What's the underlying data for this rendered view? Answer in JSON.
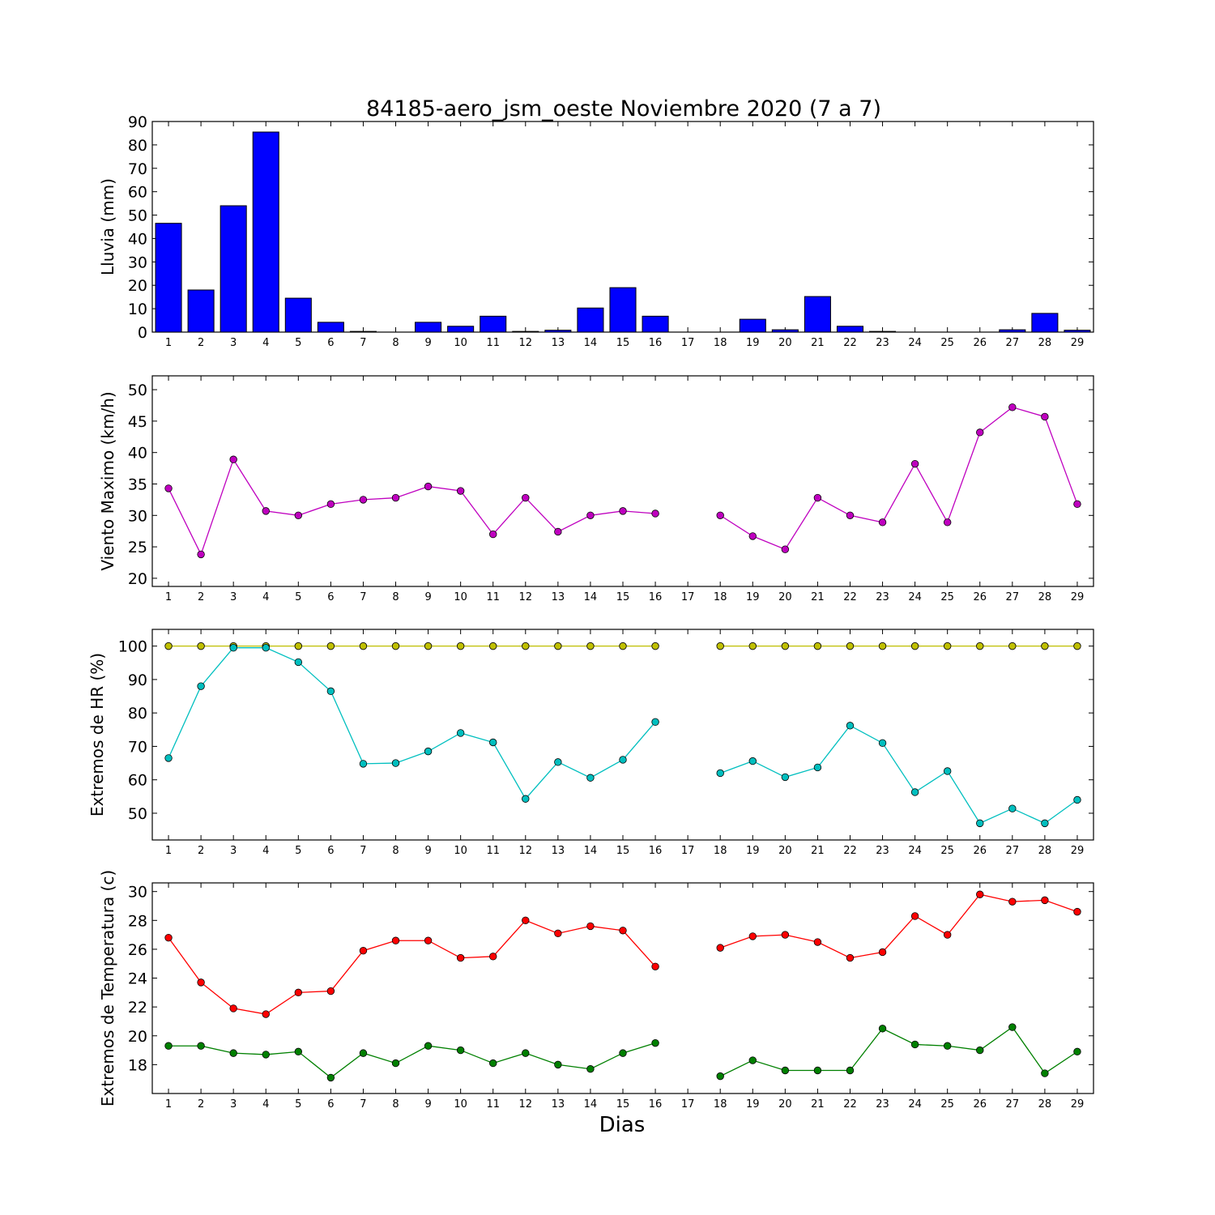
{
  "figure": {
    "title": "84185-aero_jsm_oeste Noviembre 2020  (7 a 7)",
    "xlabel": "Dias"
  },
  "chart_data": [
    {
      "type": "bar",
      "ylabel": "Lluvia (mm)",
      "x": [
        1,
        2,
        3,
        4,
        5,
        6,
        7,
        8,
        9,
        10,
        11,
        12,
        13,
        14,
        15,
        16,
        17,
        18,
        19,
        20,
        21,
        22,
        23,
        24,
        25,
        26,
        27,
        28,
        29
      ],
      "xlim": [
        0.5,
        29.5
      ],
      "ylim": [
        0,
        90
      ],
      "yticks": [
        0,
        10,
        20,
        30,
        40,
        50,
        60,
        70,
        80,
        90
      ],
      "series": [
        {
          "color": "#0000ff",
          "values": [
            46.5,
            18,
            54,
            85.5,
            14.5,
            4.2,
            0.3,
            0,
            4.2,
            2.5,
            6.8,
            0.3,
            0.8,
            10.3,
            19,
            6.8,
            0,
            0,
            5.5,
            1,
            15.2,
            2.5,
            0.3,
            0,
            0,
            0,
            1,
            8,
            0.8
          ]
        }
      ]
    },
    {
      "type": "line",
      "ylabel": "Viento Maximo (km/h)",
      "x": [
        1,
        2,
        3,
        4,
        5,
        6,
        7,
        8,
        9,
        10,
        11,
        12,
        13,
        14,
        15,
        16,
        17,
        18,
        19,
        20,
        21,
        22,
        23,
        24,
        25,
        26,
        27,
        28,
        29
      ],
      "xlim": [
        0.5,
        29.5
      ],
      "ylim": [
        18.7,
        52.2
      ],
      "yticks": [
        20,
        25,
        30,
        35,
        40,
        45,
        50
      ],
      "series": [
        {
          "color": "#bf00bf",
          "values": [
            34.3,
            23.8,
            38.9,
            30.7,
            30,
            31.8,
            32.5,
            32.8,
            34.6,
            33.9,
            27,
            32.8,
            27.4,
            30,
            30.7,
            30.3,
            null,
            30,
            26.7,
            24.6,
            32.8,
            30,
            28.9,
            38.2,
            28.9,
            43.2,
            47.2,
            45.7,
            31.8
          ]
        }
      ]
    },
    {
      "type": "line",
      "ylabel": "Extremos de HR (%)",
      "x": [
        1,
        2,
        3,
        4,
        5,
        6,
        7,
        8,
        9,
        10,
        11,
        12,
        13,
        14,
        15,
        16,
        17,
        18,
        19,
        20,
        21,
        22,
        23,
        24,
        25,
        26,
        27,
        28,
        29
      ],
      "xlim": [
        0.5,
        29.5
      ],
      "ylim": [
        42,
        105
      ],
      "yticks": [
        50,
        60,
        70,
        80,
        90,
        100
      ],
      "series": [
        {
          "color": "#bfbf00",
          "values": [
            100,
            100,
            100,
            100,
            100,
            100,
            100,
            100,
            100,
            100,
            100,
            100,
            100,
            100,
            100,
            100,
            null,
            100,
            100,
            100,
            100,
            100,
            100,
            100,
            100,
            100,
            100,
            100,
            100
          ]
        },
        {
          "color": "#00bfbf",
          "values": [
            66.5,
            88,
            99.5,
            99.5,
            95.2,
            86.5,
            64.8,
            65,
            68.5,
            74,
            71.2,
            54.3,
            65.3,
            60.6,
            66,
            77.3,
            null,
            62,
            65.6,
            60.8,
            63.7,
            76.2,
            71,
            56.3,
            62.6,
            47,
            51.4,
            47,
            54
          ]
        }
      ]
    },
    {
      "type": "line",
      "ylabel": "Extremos de Temperatura (c)",
      "x": [
        1,
        2,
        3,
        4,
        5,
        6,
        7,
        8,
        9,
        10,
        11,
        12,
        13,
        14,
        15,
        16,
        17,
        18,
        19,
        20,
        21,
        22,
        23,
        24,
        25,
        26,
        27,
        28,
        29
      ],
      "xlim": [
        0.5,
        29.5
      ],
      "ylim": [
        16,
        30.6
      ],
      "yticks": [
        18,
        20,
        22,
        24,
        26,
        28,
        30
      ],
      "series": [
        {
          "color": "#ff0000",
          "values": [
            26.8,
            23.7,
            21.9,
            21.5,
            23,
            23.1,
            25.9,
            26.6,
            26.6,
            25.4,
            25.5,
            28,
            27.1,
            27.6,
            27.3,
            24.8,
            null,
            26.1,
            26.9,
            27,
            26.5,
            25.4,
            25.8,
            28.3,
            27,
            29.8,
            29.3,
            29.4,
            28.6
          ]
        },
        {
          "color": "#008000",
          "values": [
            19.3,
            19.3,
            18.8,
            18.7,
            18.9,
            17.1,
            18.8,
            18.1,
            19.3,
            19,
            18.1,
            18.8,
            18,
            17.7,
            18.8,
            19.5,
            null,
            17.2,
            18.3,
            17.6,
            17.6,
            17.6,
            20.5,
            19.4,
            19.3,
            19,
            20.6,
            17.4,
            18.9
          ]
        }
      ]
    }
  ]
}
